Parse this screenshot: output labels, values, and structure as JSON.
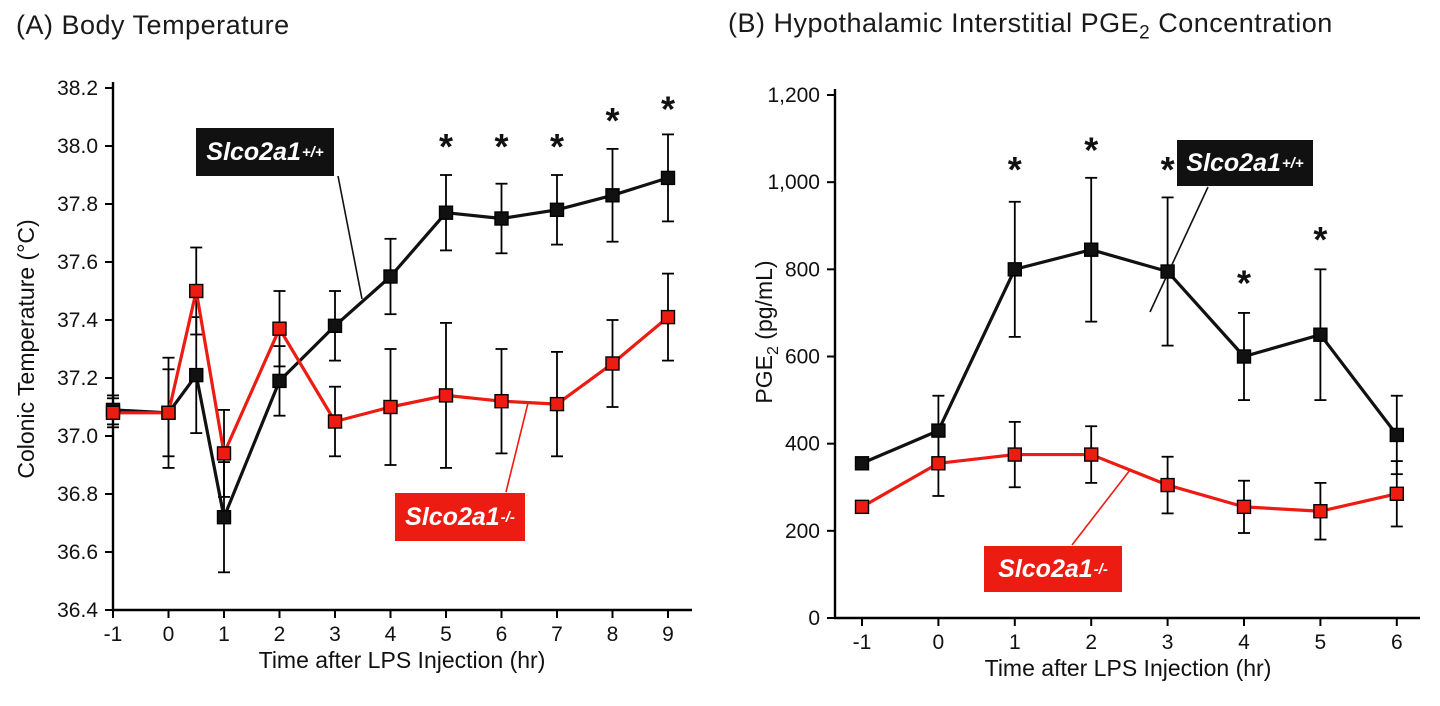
{
  "page": {
    "background": "#ffffff"
  },
  "titles": {
    "a": {
      "prefix": "(A) Body Temperature",
      "sub": "",
      "suffix": ""
    },
    "b": {
      "prefix": "(B) Hypothalamic Interstitial PGE",
      "sub": "2",
      "suffix": " Concentration"
    }
  },
  "colors": {
    "wild_type": "#111111",
    "knockout": "#ec1c12",
    "error_bar": "#000000"
  },
  "chart_data": [
    {
      "type": "line",
      "title": "(A) Body Temperature",
      "xlabel": "Time after LPS Injection (hr)",
      "ylabel": [
        {
          "text": "Colonic Temperature (°C)",
          "sub": false
        }
      ],
      "xlim": [
        -1,
        9.5
      ],
      "ylim": [
        36.4,
        38.2
      ],
      "grid": false,
      "xticks": [
        -1,
        0,
        1,
        2,
        3,
        4,
        5,
        6,
        7,
        8,
        9
      ],
      "ytick_values": [
        36.4,
        36.6,
        36.8,
        37.0,
        37.2,
        37.4,
        37.6,
        37.8,
        38.0,
        38.2
      ],
      "ytick_labels": [
        "36.4",
        "36.6",
        "36.8",
        "37.0",
        "37.2",
        "37.4",
        "37.6",
        "37.8",
        "38.0",
        "38.2"
      ],
      "series": [
        {
          "name_base": "Slco2a1",
          "name_sup": "+/+",
          "color": "#111111",
          "marker_fill": "#111111",
          "x": [
            -1,
            0,
            0.5,
            1,
            2,
            3,
            4,
            5,
            6,
            7,
            8,
            9
          ],
          "y": [
            37.09,
            37.08,
            37.21,
            36.72,
            37.19,
            37.38,
            37.55,
            37.77,
            37.75,
            37.78,
            37.83,
            37.89
          ],
          "err": [
            0.05,
            0.15,
            0.2,
            0.19,
            0.12,
            0.12,
            0.13,
            0.13,
            0.12,
            0.12,
            0.16,
            0.15
          ]
        },
        {
          "name_base": "Slco2a1",
          "name_sup": "-/-",
          "color": "#ec1c12",
          "marker_fill": "#ec1c12",
          "x": [
            -1,
            0,
            0.5,
            1,
            2,
            3,
            4,
            5,
            6,
            7,
            8,
            9
          ],
          "y": [
            37.08,
            37.08,
            37.5,
            36.94,
            37.37,
            37.05,
            37.1,
            37.14,
            37.12,
            37.11,
            37.25,
            37.41
          ],
          "err": [
            0.05,
            0.19,
            0.15,
            0.15,
            0.13,
            0.12,
            0.2,
            0.25,
            0.18,
            0.18,
            0.15,
            0.15
          ]
        }
      ],
      "asterisks": [
        {
          "x": 5,
          "y": 38.0
        },
        {
          "x": 6,
          "y": 38.0
        },
        {
          "x": 7,
          "y": 38.0
        },
        {
          "x": 8,
          "y": 38.09
        },
        {
          "x": 9,
          "y": 38.13
        }
      ]
    },
    {
      "type": "line",
      "title": "(B) Hypothalamic Interstitial PGE2 Concentration",
      "xlabel": "Time after LPS Injection (hr)",
      "ylabel": [
        {
          "text": "PGE",
          "sub": false
        },
        {
          "text": "2",
          "sub": true
        },
        {
          "text": " (pg/mL)",
          "sub": false
        }
      ],
      "xlim": [
        -1,
        6.5
      ],
      "ylim": [
        0,
        1200
      ],
      "grid": false,
      "xticks": [
        -1,
        0,
        1,
        2,
        3,
        4,
        5,
        6
      ],
      "ytick_values": [
        0,
        200,
        400,
        600,
        800,
        1000,
        1200
      ],
      "ytick_labels": [
        "0",
        "200",
        "400",
        "600",
        "800",
        "1,000",
        "1,200"
      ],
      "series": [
        {
          "name_base": "Slco2a1",
          "name_sup": "+/+",
          "color": "#111111",
          "marker_fill": "#111111",
          "x": [
            -1,
            0,
            1,
            2,
            3,
            4,
            5,
            6
          ],
          "y": [
            355,
            430,
            800,
            845,
            795,
            600,
            650,
            420
          ],
          "err": [
            0,
            80,
            155,
            165,
            170,
            100,
            150,
            90
          ]
        },
        {
          "name_base": "Slco2a1",
          "name_sup": "-/-",
          "color": "#ec1c12",
          "marker_fill": "#ec1c12",
          "x": [
            -1,
            0,
            1,
            2,
            3,
            4,
            5,
            6
          ],
          "y": [
            255,
            355,
            375,
            375,
            305,
            255,
            245,
            285
          ],
          "err": [
            0,
            75,
            75,
            65,
            65,
            60,
            65,
            75
          ]
        }
      ],
      "asterisks": [
        {
          "x": 1,
          "y": 1030
        },
        {
          "x": 2,
          "y": 1075
        },
        {
          "x": 3,
          "y": 1030
        },
        {
          "x": 4,
          "y": 770
        },
        {
          "x": 5,
          "y": 870
        }
      ]
    }
  ]
}
